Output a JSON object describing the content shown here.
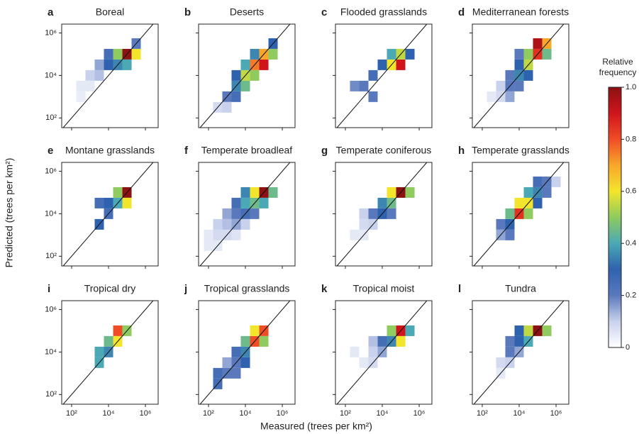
{
  "chart_data": {
    "type": "heatmap-grid",
    "xlabel": "Measured (trees per km²)",
    "ylabel": "Predicted (trees per km²)",
    "log_scale": true,
    "xlim": [
      29,
      4900000
    ],
    "ylim": [
      35,
      2600000
    ],
    "xticks": [
      {
        "value": 100,
        "label": "10²"
      },
      {
        "value": 10000,
        "label": "10⁴"
      },
      {
        "value": 1000000,
        "label": "10⁶"
      }
    ],
    "yticks": [
      {
        "value": 100,
        "label": "10²"
      },
      {
        "value": 10000,
        "label": "10⁴"
      },
      {
        "value": 1000000,
        "label": "10⁶"
      }
    ],
    "colorbar": {
      "title": "Relative frequency",
      "lim": [
        0,
        1
      ],
      "ticks": [
        0,
        0.2,
        0.4,
        0.6,
        0.8,
        {
          "value": 1,
          "label": "1.0"
        }
      ],
      "colors": [
        "#ffffff",
        "#c9d2ec",
        "#5a79bd",
        "#2f62ae",
        "#4aa9b5",
        "#8fcb5e",
        "#f2e52c",
        "#f8a72b",
        "#ef4d26",
        "#d0141c",
        "#8b1113"
      ]
    },
    "panels": [
      {
        "letter": "a",
        "title": "Boreal",
        "x": [
          3162,
          10000,
          31623,
          100000,
          316228,
          10000,
          31623,
          100000,
          1000,
          3162,
          316,
          1000,
          316,
          316228
        ],
        "y": [
          31623,
          31623,
          100000,
          100000,
          100000,
          100000,
          31623,
          31623,
          10000,
          10000,
          3162,
          3162,
          1000,
          316228
        ],
        "values": [
          0.15,
          0.3,
          0.5,
          1.0,
          0.6,
          0.25,
          0.35,
          0.4,
          0.1,
          0.12,
          0.05,
          0.05,
          0.04,
          0.2
        ]
      },
      {
        "letter": "b",
        "title": "Deserts",
        "x": [
          1000,
          3162,
          3162,
          10000,
          10000,
          3162,
          31623,
          31623,
          10000,
          100000,
          100000,
          316228,
          316228,
          1000,
          316,
          31623
        ],
        "y": [
          1000,
          3162,
          1000,
          10000,
          3162,
          10000,
          31623,
          10000,
          31623,
          31623,
          100000,
          100000,
          316228,
          316,
          316,
          100000
        ],
        "values": [
          0.2,
          0.35,
          0.25,
          0.55,
          0.45,
          0.3,
          0.75,
          0.5,
          0.4,
          0.9,
          0.7,
          0.5,
          0.3,
          0.1,
          0.08,
          0.35
        ]
      },
      {
        "letter": "c",
        "title": "Flooded grasslands",
        "x": [
          31623,
          100000,
          100000,
          31623,
          316228,
          10000,
          3162,
          1000,
          316,
          3162
        ],
        "y": [
          31623,
          31623,
          100000,
          100000,
          100000,
          31623,
          10000,
          3162,
          3162,
          1000
        ],
        "values": [
          0.6,
          0.9,
          0.55,
          0.4,
          0.3,
          0.3,
          0.25,
          0.2,
          0.18,
          0.2
        ]
      },
      {
        "letter": "d",
        "title": "Mediterranean forests",
        "x": [
          1000,
          3162,
          3162,
          10000,
          10000,
          31623,
          31623,
          100000,
          100000,
          316228,
          316228,
          31623,
          1000,
          316,
          3162,
          10000,
          10000
        ],
        "y": [
          3162,
          3162,
          10000,
          10000,
          31623,
          31623,
          100000,
          100000,
          316228,
          316228,
          100000,
          10000,
          1000,
          1000,
          1000,
          3162,
          100000
        ],
        "values": [
          0.1,
          0.2,
          0.2,
          0.35,
          0.3,
          0.55,
          0.5,
          0.85,
          0.95,
          0.7,
          0.45,
          0.3,
          0.08,
          0.05,
          0.15,
          0.2,
          0.2
        ]
      },
      {
        "letter": "e",
        "title": "Montane grasslands",
        "x": [
          100000,
          31623,
          100000,
          31623,
          10000,
          3162,
          10000,
          3162
        ],
        "y": [
          100000,
          100000,
          31623,
          31623,
          31623,
          31623,
          10000,
          3162
        ],
        "values": [
          1.0,
          0.5,
          0.6,
          0.4,
          0.3,
          0.25,
          0.25,
          0.3
        ]
      },
      {
        "letter": "f",
        "title": "Temperate broadleaf",
        "x": [
          100,
          316,
          1000,
          3162,
          316,
          1000,
          3162,
          10000,
          1000,
          3162,
          10000,
          31623,
          3162,
          10000,
          31623,
          100000,
          10000,
          31623,
          100000,
          316228,
          100,
          316
        ],
        "y": [
          1000,
          1000,
          1000,
          1000,
          3162,
          3162,
          3162,
          3162,
          10000,
          10000,
          10000,
          10000,
          31623,
          31623,
          31623,
          31623,
          100000,
          100000,
          100000,
          100000,
          316,
          316
        ],
        "values": [
          0.05,
          0.08,
          0.08,
          0.06,
          0.1,
          0.12,
          0.15,
          0.1,
          0.15,
          0.2,
          0.25,
          0.2,
          0.25,
          0.4,
          0.45,
          0.4,
          0.35,
          0.6,
          1.0,
          0.45,
          0.05,
          0.05
        ]
      },
      {
        "letter": "g",
        "title": "Temperate coniferous",
        "x": [
          1000,
          1000,
          3162,
          3162,
          10000,
          10000,
          31623,
          31623,
          100000,
          316228,
          1000,
          31623,
          316
        ],
        "y": [
          1000,
          3162,
          3162,
          10000,
          10000,
          31623,
          31623,
          100000,
          100000,
          100000,
          10000,
          10000,
          1000
        ],
        "values": [
          0.05,
          0.08,
          0.1,
          0.2,
          0.3,
          0.35,
          0.45,
          0.6,
          1.0,
          0.5,
          0.1,
          0.2,
          0.05
        ]
      },
      {
        "letter": "h",
        "title": "Temperate grasslands",
        "x": [
          1000,
          3162,
          3162,
          10000,
          10000,
          31623,
          31623,
          100000,
          100000,
          316228,
          31623,
          1000,
          100000,
          316228,
          1000000,
          3162
        ],
        "y": [
          3162,
          3162,
          10000,
          10000,
          31623,
          31623,
          100000,
          100000,
          316228,
          316228,
          10000,
          1000,
          31623,
          100000,
          316228,
          1000
        ],
        "values": [
          0.2,
          0.3,
          0.45,
          0.85,
          0.6,
          0.6,
          0.4,
          0.35,
          0.25,
          0.2,
          0.5,
          0.15,
          0.3,
          0.2,
          0.1,
          0.2
        ]
      },
      {
        "letter": "i",
        "title": "Tropical dry",
        "x": [
          31623,
          31623,
          10000,
          10000,
          3162,
          3162,
          100000
        ],
        "y": [
          100000,
          31623,
          31623,
          10000,
          10000,
          3162,
          100000
        ],
        "values": [
          0.8,
          0.6,
          0.45,
          0.35,
          0.4,
          0.4,
          0.5
        ]
      },
      {
        "letter": "j",
        "title": "Tropical grasslands",
        "x": [
          31623,
          100000,
          31623,
          10000,
          10000,
          3162,
          3162,
          1000,
          1000,
          316,
          316,
          10000,
          100000,
          3162
        ],
        "y": [
          31623,
          100000,
          100000,
          31623,
          10000,
          10000,
          3162,
          3162,
          1000,
          1000,
          316,
          3162,
          31623,
          1000
        ],
        "values": [
          0.8,
          0.8,
          0.6,
          0.45,
          0.35,
          0.25,
          0.2,
          0.15,
          0.2,
          0.25,
          0.25,
          0.3,
          0.5,
          0.2
        ]
      },
      {
        "letter": "k",
        "title": "Tropical moist",
        "x": [
          100000,
          31623,
          100000,
          31623,
          10000,
          10000,
          3162,
          3162,
          1000,
          316,
          316228,
          3162
        ],
        "y": [
          100000,
          100000,
          31623,
          31623,
          31623,
          10000,
          10000,
          3162,
          3162,
          10000,
          100000,
          31623
        ],
        "values": [
          0.9,
          0.5,
          0.6,
          0.35,
          0.25,
          0.15,
          0.1,
          0.08,
          0.05,
          0.05,
          0.4,
          0.12
        ]
      },
      {
        "letter": "l",
        "title": "Tundra",
        "x": [
          100000,
          31623,
          316228,
          31623,
          10000,
          10000,
          3162,
          10000,
          3162,
          1000,
          1000,
          3162
        ],
        "y": [
          100000,
          100000,
          100000,
          31623,
          31623,
          100000,
          10000,
          10000,
          3162,
          3162,
          1000,
          31623
        ],
        "values": [
          1.0,
          0.55,
          0.5,
          0.4,
          0.3,
          0.3,
          0.2,
          0.15,
          0.1,
          0.08,
          0.05,
          0.2
        ]
      }
    ]
  }
}
